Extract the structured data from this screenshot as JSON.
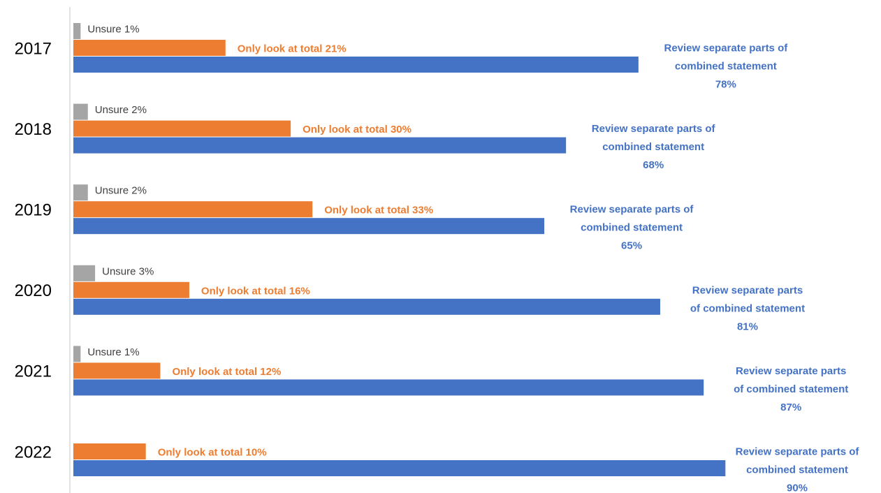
{
  "chart_data": {
    "type": "hbar",
    "categories": [
      "2017",
      "2018",
      "2019",
      "2020",
      "2021",
      "2022"
    ],
    "series": [
      {
        "color": "#a5a5a5",
        "label_color": "#404040",
        "values": [
          1,
          2,
          2,
          3,
          1,
          null
        ],
        "value_labels": [
          "Unsure 1%",
          "Unsure 2%",
          "Unsure 2%",
          "Unsure 3%",
          "Unsure 1%",
          null
        ]
      },
      {
        "color": "#ed7d31",
        "label_color": "#ed7d31",
        "values": [
          21,
          30,
          33,
          16,
          12,
          10
        ],
        "value_labels": [
          "Only look at total 21%",
          "Only look at total 30%",
          "Only look at total 33%",
          "Only look at total 16%",
          "Only look at total 12%",
          "Only look at total 10%"
        ]
      },
      {
        "color": "#4472c4",
        "label_color": "#4472c4",
        "values": [
          78,
          68,
          65,
          81,
          87,
          90
        ],
        "value_labels": [
          "Review separate parts of\ncombined statement\n78%",
          "Review separate parts of\ncombined statement\n68%",
          "Review separate parts of\ncombined statement\n65%",
          "Review separate parts\nof combined statement\n81%",
          "Review separate parts\nof combined statement\n87%",
          "Review separate parts of\ncombined statement\n90%"
        ]
      }
    ],
    "xlim": [
      0,
      100
    ]
  }
}
